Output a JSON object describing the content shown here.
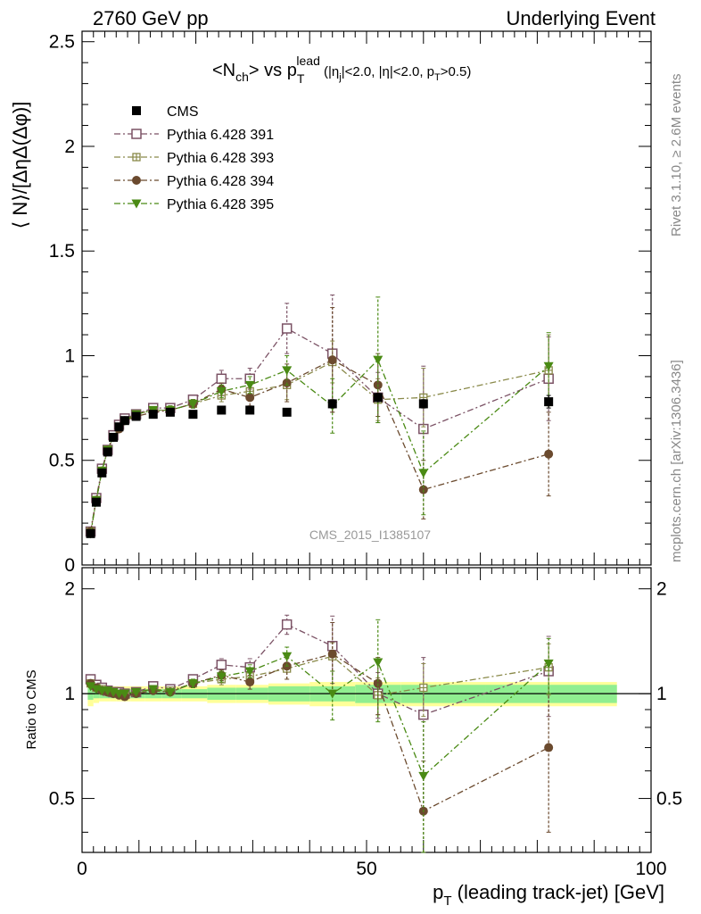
{
  "header": {
    "left": "2760 GeV pp",
    "right": "Underlying Event"
  },
  "side_labels": {
    "rivet": "Rivet 3.1.10, ≥ 2.6M events",
    "mcplots": "mcplots.cern.ch [arXiv:1306.3436]"
  },
  "watermark": "CMS_2015_I1385107",
  "title": {
    "main": "<N",
    "main_sub": "ch",
    "mid": "> vs p",
    "p_sub": "T",
    "p_sup": "lead",
    "cuts_1": " (|η",
    "cuts_1_sub": "j",
    "cuts_2": "|<2.0, |η|<2.0, p",
    "cuts_2_sub": "T",
    "cuts_3": ">0.5)"
  },
  "axes": {
    "ylabel_main": "⟨ N⟩/[ΔηΔ(Δφ)]",
    "ylabel_ratio": "Ratio to CMS",
    "xlabel_main": "p",
    "xlabel_sub": "T",
    "xlabel_rest": " (leading track-jet) [GeV]"
  },
  "colors": {
    "CMS": "#000000",
    "Pythia 6.428 391": "#7b5265",
    "Pythia 6.428 393": "#8a8a4a",
    "Pythia 6.428 394": "#6b4a2e",
    "Pythia 6.428 395": "#4a8a14",
    "band_inner": "#90ee90",
    "band_outer": "#ffff99"
  },
  "chart_data": [
    {
      "type": "scatter",
      "panel": "main",
      "xlim": [
        0,
        100
      ],
      "ylim": [
        0,
        2.55
      ],
      "yticks": [
        0,
        0.5,
        1,
        1.5,
        2,
        2.5
      ],
      "ytick_labels": [
        "0",
        "0.5",
        "1",
        "1.5",
        "2",
        "2.5"
      ],
      "xticks": [
        0,
        50,
        100
      ],
      "xtick_labels": [
        "0",
        "50",
        "100"
      ],
      "x": [
        1.5,
        2.5,
        3.5,
        4.5,
        5.5,
        6.5,
        7.5,
        9.5,
        12.5,
        15.5,
        19.5,
        24.5,
        29.5,
        36,
        44,
        52,
        60,
        82
      ],
      "legend_position": "top-left",
      "series": [
        {
          "name": "CMS",
          "marker": "square-filled",
          "values": [
            0.15,
            0.3,
            0.44,
            0.54,
            0.61,
            0.66,
            0.69,
            0.71,
            0.72,
            0.73,
            0.72,
            0.74,
            0.74,
            0.73,
            0.77,
            0.8,
            0.77,
            0.78
          ],
          "errors": [
            0.01,
            0.01,
            0.01,
            0.01,
            0.01,
            0.01,
            0.01,
            0.01,
            0.01,
            0.01,
            0.01,
            0.01,
            0.01,
            0.01,
            0.02,
            0.02,
            0.02,
            0.03
          ]
        },
        {
          "name": "Pythia 6.428 391",
          "marker": "square-open",
          "values": [
            0.16,
            0.32,
            0.46,
            0.55,
            0.62,
            0.67,
            0.7,
            0.72,
            0.75,
            0.75,
            0.79,
            0.89,
            0.89,
            1.13,
            1.01,
            0.8,
            0.65,
            0.89
          ],
          "errors": [
            0.01,
            0.01,
            0.01,
            0.01,
            0.01,
            0.01,
            0.01,
            0.01,
            0.01,
            0.02,
            0.02,
            0.04,
            0.05,
            0.12,
            0.28,
            0.12,
            0.3,
            0.2
          ]
        },
        {
          "name": "Pythia 6.428 393",
          "marker": "plus-square-open",
          "values": [
            0.16,
            0.31,
            0.45,
            0.55,
            0.61,
            0.66,
            0.69,
            0.72,
            0.74,
            0.74,
            0.77,
            0.81,
            0.83,
            0.86,
            0.97,
            0.79,
            0.8,
            0.93
          ],
          "errors": [
            0.01,
            0.01,
            0.01,
            0.01,
            0.01,
            0.01,
            0.01,
            0.01,
            0.01,
            0.02,
            0.02,
            0.03,
            0.04,
            0.07,
            0.1,
            0.1,
            0.14,
            0.17
          ]
        },
        {
          "name": "Pythia 6.428 394",
          "marker": "circle-filled",
          "values": [
            0.16,
            0.31,
            0.45,
            0.55,
            0.61,
            0.65,
            0.69,
            0.71,
            0.73,
            0.74,
            0.77,
            0.84,
            0.8,
            0.87,
            0.98,
            0.86,
            0.36,
            0.53
          ],
          "errors": [
            0.01,
            0.01,
            0.01,
            0.01,
            0.01,
            0.01,
            0.01,
            0.01,
            0.01,
            0.02,
            0.02,
            0.03,
            0.04,
            0.09,
            0.25,
            0.15,
            0.14,
            0.2
          ]
        },
        {
          "name": "Pythia 6.428 395",
          "marker": "triangle-down-filled",
          "values": [
            0.15,
            0.31,
            0.45,
            0.55,
            0.61,
            0.66,
            0.69,
            0.72,
            0.74,
            0.74,
            0.77,
            0.83,
            0.86,
            0.93,
            0.76,
            0.98,
            0.44,
            0.95
          ],
          "errors": [
            0.01,
            0.01,
            0.01,
            0.01,
            0.01,
            0.01,
            0.01,
            0.01,
            0.01,
            0.02,
            0.02,
            0.03,
            0.04,
            0.07,
            0.13,
            0.3,
            0.2,
            0.16
          ]
        }
      ]
    },
    {
      "type": "scatter",
      "panel": "ratio",
      "xlim": [
        0,
        100
      ],
      "ylim": [
        0.35,
        2.3
      ],
      "yticks": [
        0.5,
        1,
        2
      ],
      "ytick_labels": [
        "0.5",
        "1",
        "2"
      ],
      "xticks": [
        0,
        50,
        100
      ],
      "xtick_labels": [
        "0",
        "50",
        "100"
      ],
      "x": [
        1.5,
        2.5,
        3.5,
        4.5,
        5.5,
        6.5,
        7.5,
        9.5,
        12.5,
        15.5,
        19.5,
        24.5,
        29.5,
        36,
        44,
        52,
        60,
        82
      ],
      "band_inner_halfwidth": [
        0.04,
        0.03,
        0.03,
        0.03,
        0.03,
        0.03,
        0.03,
        0.03,
        0.03,
        0.03,
        0.03,
        0.04,
        0.04,
        0.05,
        0.05,
        0.06,
        0.06,
        0.06
      ],
      "band_outer_halfwidth": [
        0.08,
        0.06,
        0.05,
        0.05,
        0.05,
        0.05,
        0.05,
        0.05,
        0.05,
        0.05,
        0.05,
        0.06,
        0.06,
        0.07,
        0.08,
        0.08,
        0.08,
        0.08
      ],
      "series": [
        {
          "name": "Pythia 6.428 391",
          "values": [
            1.1,
            1.06,
            1.04,
            1.02,
            1.01,
            1.01,
            1.0,
            1.01,
            1.05,
            1.03,
            1.1,
            1.21,
            1.19,
            1.58,
            1.37,
            1.0,
            0.87,
            1.16
          ],
          "errors": [
            0.01,
            0.01,
            0.01,
            0.01,
            0.01,
            0.01,
            0.01,
            0.01,
            0.02,
            0.02,
            0.03,
            0.05,
            0.07,
            0.1,
            0.3,
            0.15,
            0.4,
            0.3
          ]
        },
        {
          "name": "Pythia 6.428 393",
          "values": [
            1.07,
            1.04,
            1.03,
            1.02,
            1.01,
            1.0,
            1.0,
            1.01,
            1.03,
            1.02,
            1.07,
            1.1,
            1.12,
            1.18,
            1.28,
            0.99,
            1.04,
            1.19
          ],
          "errors": [
            0.01,
            0.01,
            0.01,
            0.01,
            0.01,
            0.01,
            0.01,
            0.01,
            0.02,
            0.02,
            0.03,
            0.04,
            0.05,
            0.08,
            0.12,
            0.12,
            0.18,
            0.2
          ]
        },
        {
          "name": "Pythia 6.428 394",
          "values": [
            1.07,
            1.04,
            1.02,
            1.01,
            1.0,
            0.99,
            0.98,
            1.0,
            1.02,
            1.01,
            1.07,
            1.13,
            1.08,
            1.2,
            1.3,
            1.07,
            0.46,
            0.7
          ],
          "errors": [
            0.01,
            0.01,
            0.01,
            0.01,
            0.01,
            0.01,
            0.01,
            0.01,
            0.02,
            0.02,
            0.03,
            0.04,
            0.05,
            0.1,
            0.3,
            0.2,
            0.18,
            0.3
          ]
        },
        {
          "name": "Pythia 6.428 395",
          "values": [
            1.05,
            1.03,
            1.02,
            1.02,
            1.01,
            1.0,
            1.0,
            1.01,
            1.03,
            1.01,
            1.07,
            1.12,
            1.16,
            1.28,
            1.0,
            1.23,
            0.58,
            1.22
          ],
          "errors": [
            0.01,
            0.01,
            0.01,
            0.01,
            0.01,
            0.01,
            0.01,
            0.01,
            0.02,
            0.02,
            0.03,
            0.04,
            0.05,
            0.08,
            0.16,
            0.4,
            0.25,
            0.22
          ]
        }
      ]
    }
  ]
}
